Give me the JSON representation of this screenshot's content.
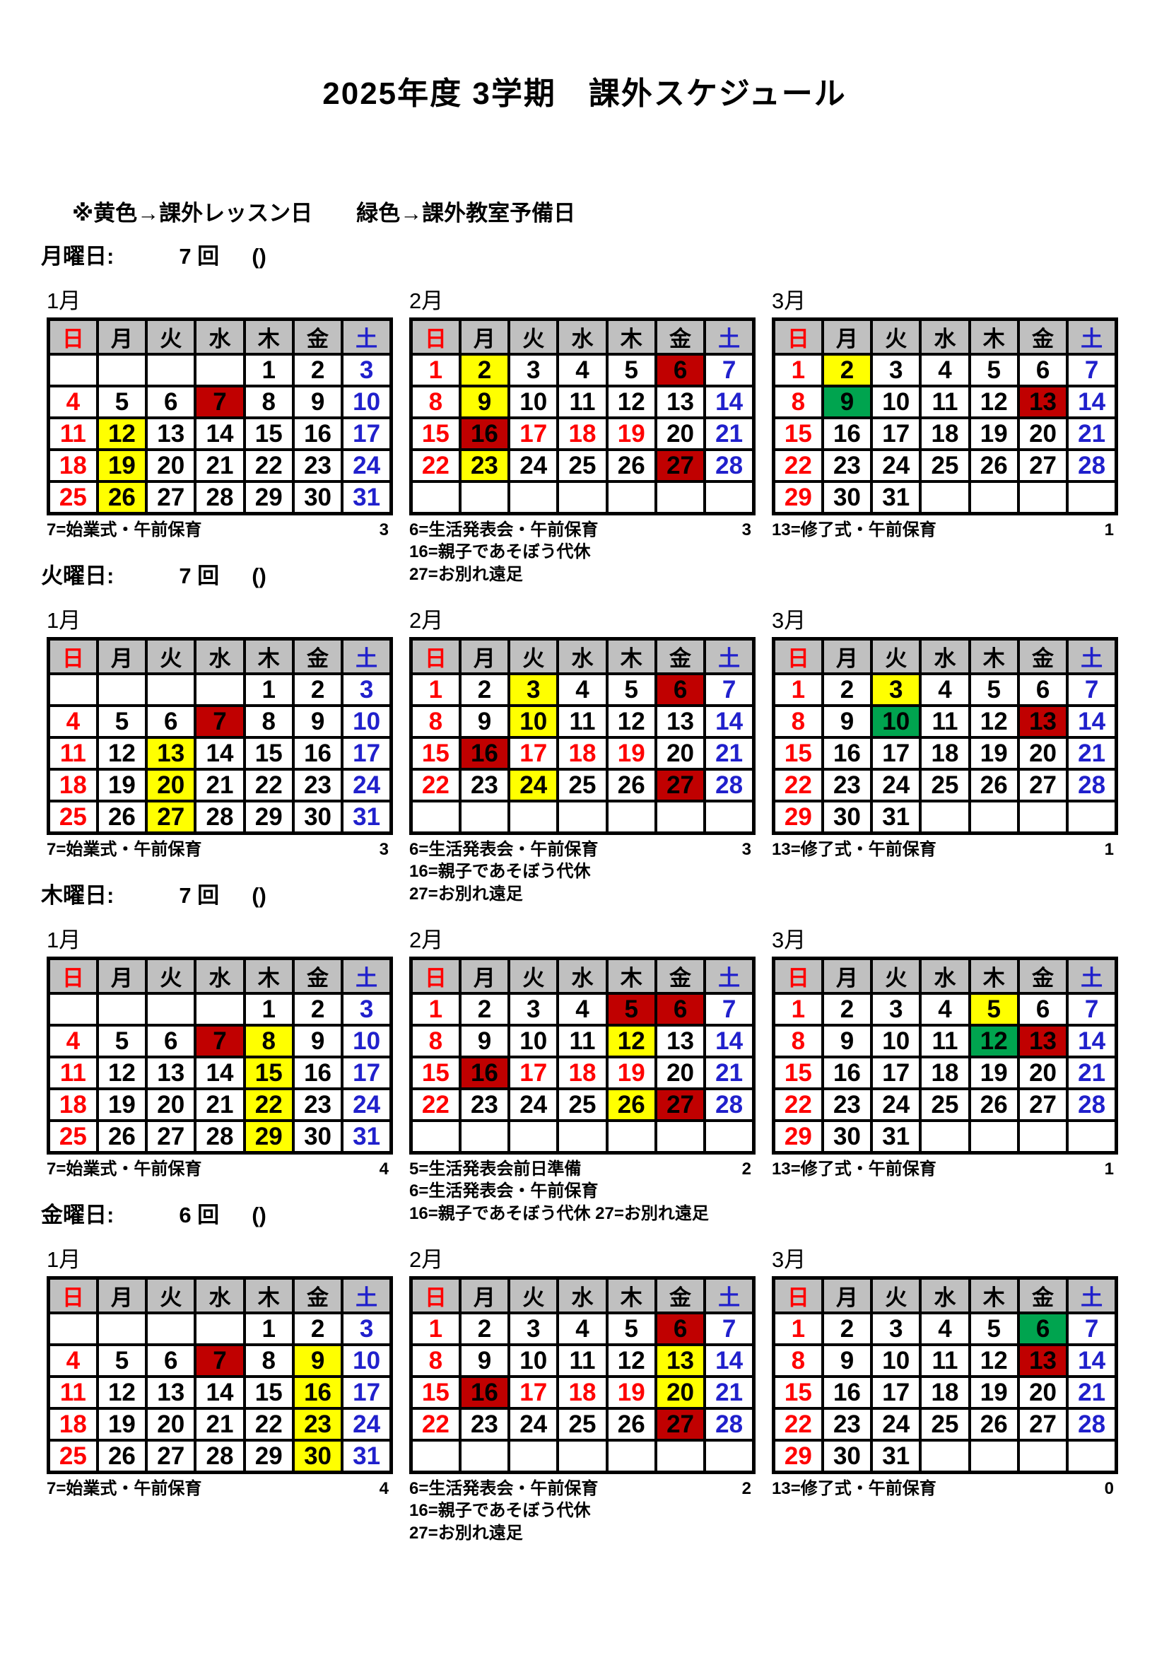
{
  "page": {
    "title": "2025年度 3学期　課外スケジュール",
    "legend": "※黄色→課外レッスン日　　緑色→課外教室予備日"
  },
  "colors": {
    "lesson": "#FFFF00",
    "reserve": "#00A44F",
    "event": "#C00000",
    "sunday": "#FF0000",
    "saturday": "#2020CC",
    "header_bg": "#C0C0C0"
  },
  "weekdays": [
    "日",
    "月",
    "火",
    "水",
    "木",
    "金",
    "土"
  ],
  "sections": [
    {
      "id": "monday",
      "label": "月曜日:",
      "count": "7 回",
      "paren": "()",
      "months": [
        {
          "label": "1月",
          "weeks": [
            [
              "",
              "",
              "",
              "",
              "1",
              "2",
              "3"
            ],
            [
              "4",
              "5",
              "6",
              "7",
              "8",
              "9",
              "10"
            ],
            [
              "11",
              "12",
              "13",
              "14",
              "15",
              "16",
              "17"
            ],
            [
              "18",
              "19",
              "20",
              "21",
              "22",
              "23",
              "24"
            ],
            [
              "25",
              "26",
              "27",
              "28",
              "29",
              "30",
              "31"
            ]
          ],
          "lesson": [
            12,
            19,
            26
          ],
          "reserve": [],
          "event": [
            7
          ],
          "red_days": [],
          "notes": [
            {
              "text": "7=始業式・午前保育",
              "count": "3"
            }
          ]
        },
        {
          "label": "2月",
          "weeks": [
            [
              "1",
              "2",
              "3",
              "4",
              "5",
              "6",
              "7"
            ],
            [
              "8",
              "9",
              "10",
              "11",
              "12",
              "13",
              "14"
            ],
            [
              "15",
              "16",
              "17",
              "18",
              "19",
              "20",
              "21"
            ],
            [
              "22",
              "23",
              "24",
              "25",
              "26",
              "27",
              "28"
            ],
            [
              "",
              "",
              "",
              "",
              "",
              "",
              ""
            ]
          ],
          "lesson": [
            2,
            9,
            23
          ],
          "reserve": [],
          "event": [
            6,
            16,
            27
          ],
          "red_days": [
            17,
            18,
            19
          ],
          "notes": [
            {
              "text": "6=生活発表会・午前保育",
              "count": "3"
            },
            {
              "text": "16=親子であそぼう代休",
              "count": ""
            },
            {
              "text": "27=お別れ遠足",
              "count": ""
            }
          ]
        },
        {
          "label": "3月",
          "weeks": [
            [
              "1",
              "2",
              "3",
              "4",
              "5",
              "6",
              "7"
            ],
            [
              "8",
              "9",
              "10",
              "11",
              "12",
              "13",
              "14"
            ],
            [
              "15",
              "16",
              "17",
              "18",
              "19",
              "20",
              "21"
            ],
            [
              "22",
              "23",
              "24",
              "25",
              "26",
              "27",
              "28"
            ],
            [
              "29",
              "30",
              "31",
              "",
              "",
              "",
              ""
            ]
          ],
          "lesson": [
            2
          ],
          "reserve": [
            9
          ],
          "event": [
            13
          ],
          "red_days": [],
          "notes": [
            {
              "text": "13=修了式・午前保育",
              "count": "1"
            }
          ]
        }
      ]
    },
    {
      "id": "tuesday",
      "label": "火曜日:",
      "count": "7 回",
      "paren": "()",
      "months": [
        {
          "label": "1月",
          "weeks": [
            [
              "",
              "",
              "",
              "",
              "1",
              "2",
              "3"
            ],
            [
              "4",
              "5",
              "6",
              "7",
              "8",
              "9",
              "10"
            ],
            [
              "11",
              "12",
              "13",
              "14",
              "15",
              "16",
              "17"
            ],
            [
              "18",
              "19",
              "20",
              "21",
              "22",
              "23",
              "24"
            ],
            [
              "25",
              "26",
              "27",
              "28",
              "29",
              "30",
              "31"
            ]
          ],
          "lesson": [
            13,
            20,
            27
          ],
          "reserve": [],
          "event": [
            7
          ],
          "red_days": [],
          "notes": [
            {
              "text": "7=始業式・午前保育",
              "count": "3"
            }
          ]
        },
        {
          "label": "2月",
          "weeks": [
            [
              "1",
              "2",
              "3",
              "4",
              "5",
              "6",
              "7"
            ],
            [
              "8",
              "9",
              "10",
              "11",
              "12",
              "13",
              "14"
            ],
            [
              "15",
              "16",
              "17",
              "18",
              "19",
              "20",
              "21"
            ],
            [
              "22",
              "23",
              "24",
              "25",
              "26",
              "27",
              "28"
            ],
            [
              "",
              "",
              "",
              "",
              "",
              "",
              ""
            ]
          ],
          "lesson": [
            3,
            10,
            24
          ],
          "reserve": [],
          "event": [
            6,
            16,
            27
          ],
          "red_days": [
            17,
            18,
            19
          ],
          "notes": [
            {
              "text": "6=生活発表会・午前保育",
              "count": "3"
            },
            {
              "text": "16=親子であそぼう代休",
              "count": ""
            },
            {
              "text": "27=お別れ遠足",
              "count": ""
            }
          ]
        },
        {
          "label": "3月",
          "weeks": [
            [
              "1",
              "2",
              "3",
              "4",
              "5",
              "6",
              "7"
            ],
            [
              "8",
              "9",
              "10",
              "11",
              "12",
              "13",
              "14"
            ],
            [
              "15",
              "16",
              "17",
              "18",
              "19",
              "20",
              "21"
            ],
            [
              "22",
              "23",
              "24",
              "25",
              "26",
              "27",
              "28"
            ],
            [
              "29",
              "30",
              "31",
              "",
              "",
              "",
              ""
            ]
          ],
          "lesson": [
            3
          ],
          "reserve": [
            10
          ],
          "event": [
            13
          ],
          "red_days": [],
          "notes": [
            {
              "text": "13=修了式・午前保育",
              "count": "1"
            }
          ]
        }
      ]
    },
    {
      "id": "thursday",
      "label": "木曜日:",
      "count": "7 回",
      "paren": "()",
      "months": [
        {
          "label": "1月",
          "weeks": [
            [
              "",
              "",
              "",
              "",
              "1",
              "2",
              "3"
            ],
            [
              "4",
              "5",
              "6",
              "7",
              "8",
              "9",
              "10"
            ],
            [
              "11",
              "12",
              "13",
              "14",
              "15",
              "16",
              "17"
            ],
            [
              "18",
              "19",
              "20",
              "21",
              "22",
              "23",
              "24"
            ],
            [
              "25",
              "26",
              "27",
              "28",
              "29",
              "30",
              "31"
            ]
          ],
          "lesson": [
            8,
            15,
            22,
            29
          ],
          "reserve": [],
          "event": [
            7
          ],
          "red_days": [],
          "notes": [
            {
              "text": "7=始業式・午前保育",
              "count": "4"
            }
          ]
        },
        {
          "label": "2月",
          "weeks": [
            [
              "1",
              "2",
              "3",
              "4",
              "5",
              "6",
              "7"
            ],
            [
              "8",
              "9",
              "10",
              "11",
              "12",
              "13",
              "14"
            ],
            [
              "15",
              "16",
              "17",
              "18",
              "19",
              "20",
              "21"
            ],
            [
              "22",
              "23",
              "24",
              "25",
              "26",
              "27",
              "28"
            ],
            [
              "",
              "",
              "",
              "",
              "",
              "",
              ""
            ]
          ],
          "lesson": [
            12,
            26
          ],
          "reserve": [],
          "event": [
            5,
            6,
            16,
            27
          ],
          "red_days": [
            17,
            18,
            19
          ],
          "notes": [
            {
              "text": "5=生活発表会前日準備",
              "count": "2"
            },
            {
              "text": "6=生活発表会・午前保育",
              "count": ""
            },
            {
              "text": "16=親子であそぼう代休 27=お別れ遠足",
              "count": ""
            }
          ]
        },
        {
          "label": "3月",
          "weeks": [
            [
              "1",
              "2",
              "3",
              "4",
              "5",
              "6",
              "7"
            ],
            [
              "8",
              "9",
              "10",
              "11",
              "12",
              "13",
              "14"
            ],
            [
              "15",
              "16",
              "17",
              "18",
              "19",
              "20",
              "21"
            ],
            [
              "22",
              "23",
              "24",
              "25",
              "26",
              "27",
              "28"
            ],
            [
              "29",
              "30",
              "31",
              "",
              "",
              "",
              ""
            ]
          ],
          "lesson": [
            5
          ],
          "reserve": [
            12
          ],
          "event": [
            13
          ],
          "red_days": [],
          "notes": [
            {
              "text": "13=修了式・午前保育",
              "count": "1"
            }
          ]
        }
      ]
    },
    {
      "id": "friday",
      "label": "金曜日:",
      "count": "6 回",
      "paren": "()",
      "months": [
        {
          "label": "1月",
          "weeks": [
            [
              "",
              "",
              "",
              "",
              "1",
              "2",
              "3"
            ],
            [
              "4",
              "5",
              "6",
              "7",
              "8",
              "9",
              "10"
            ],
            [
              "11",
              "12",
              "13",
              "14",
              "15",
              "16",
              "17"
            ],
            [
              "18",
              "19",
              "20",
              "21",
              "22",
              "23",
              "24"
            ],
            [
              "25",
              "26",
              "27",
              "28",
              "29",
              "30",
              "31"
            ]
          ],
          "lesson": [
            9,
            16,
            23,
            30
          ],
          "reserve": [],
          "event": [
            7
          ],
          "red_days": [],
          "notes": [
            {
              "text": "7=始業式・午前保育",
              "count": "4"
            }
          ]
        },
        {
          "label": "2月",
          "weeks": [
            [
              "1",
              "2",
              "3",
              "4",
              "5",
              "6",
              "7"
            ],
            [
              "8",
              "9",
              "10",
              "11",
              "12",
              "13",
              "14"
            ],
            [
              "15",
              "16",
              "17",
              "18",
              "19",
              "20",
              "21"
            ],
            [
              "22",
              "23",
              "24",
              "25",
              "26",
              "27",
              "28"
            ],
            [
              "",
              "",
              "",
              "",
              "",
              "",
              ""
            ]
          ],
          "lesson": [
            13,
            20
          ],
          "reserve": [],
          "event": [
            6,
            16,
            27
          ],
          "red_days": [
            17,
            18,
            19
          ],
          "notes": [
            {
              "text": "6=生活発表会・午前保育",
              "count": "2"
            },
            {
              "text": "16=親子であそぼう代休",
              "count": ""
            },
            {
              "text": "27=お別れ遠足",
              "count": ""
            }
          ]
        },
        {
          "label": "3月",
          "weeks": [
            [
              "1",
              "2",
              "3",
              "4",
              "5",
              "6",
              "7"
            ],
            [
              "8",
              "9",
              "10",
              "11",
              "12",
              "13",
              "14"
            ],
            [
              "15",
              "16",
              "17",
              "18",
              "19",
              "20",
              "21"
            ],
            [
              "22",
              "23",
              "24",
              "25",
              "26",
              "27",
              "28"
            ],
            [
              "29",
              "30",
              "31",
              "",
              "",
              "",
              ""
            ]
          ],
          "lesson": [],
          "reserve": [
            6
          ],
          "event": [
            13
          ],
          "red_days": [],
          "notes": [
            {
              "text": "13=修了式・午前保育",
              "count": "0"
            }
          ]
        }
      ]
    }
  ]
}
